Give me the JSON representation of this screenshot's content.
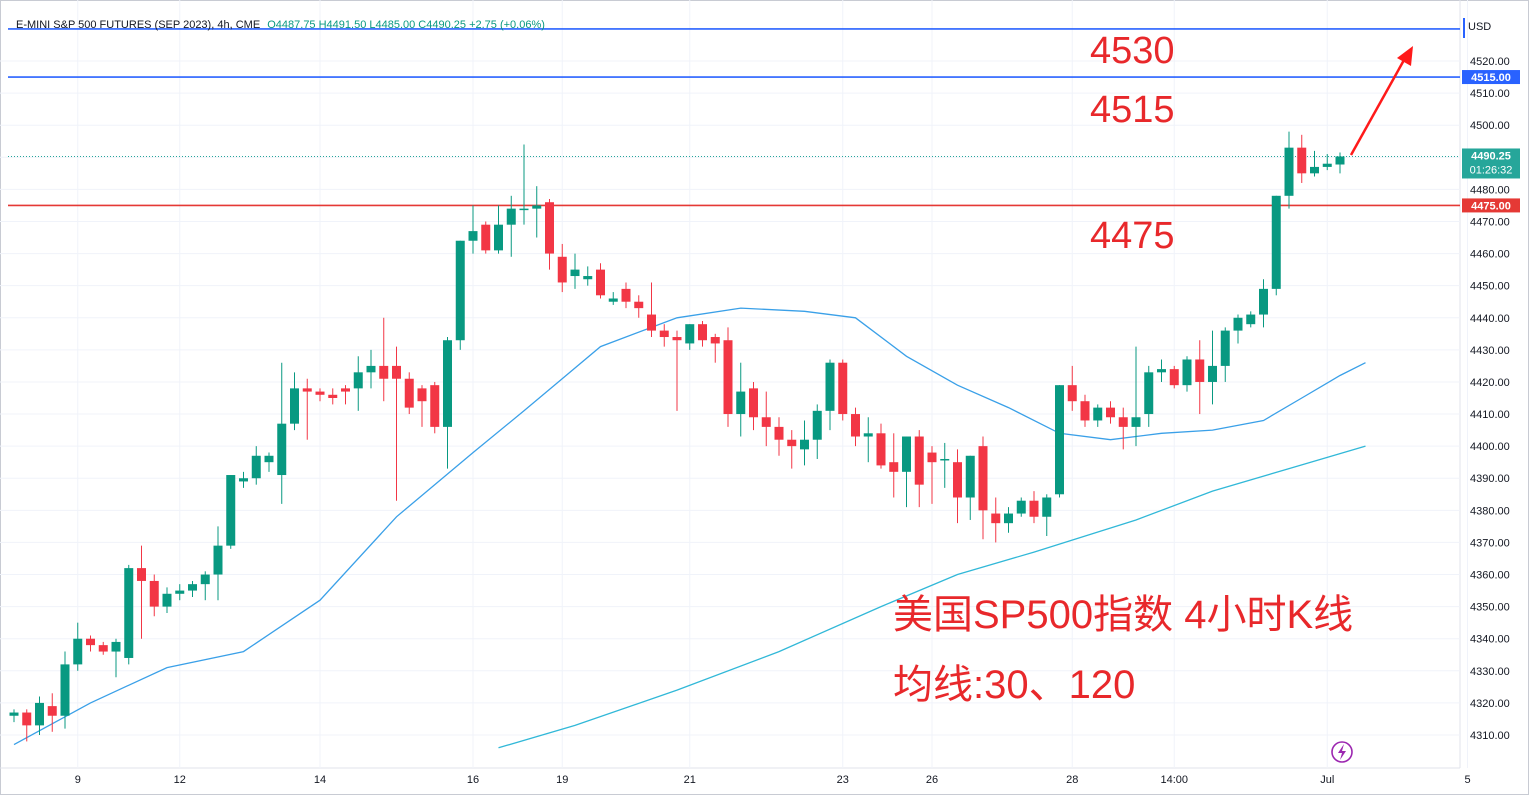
{
  "header": {
    "symbol": "E-MINI S&P 500 FUTURES (SEP 2023)",
    "interval": "4h",
    "exchange": "CME",
    "ohlc": "O4487.75  H4491.50  L4485.00  C4490.25  +2.75 (+0.06%)"
  },
  "currency": "USD",
  "price_labels": {
    "last": "4490.25",
    "countdown": "01:26:32",
    "line_4515": "4515.00",
    "line_4475": "4475.00"
  },
  "annotations": {
    "level_4530": "4530",
    "level_4515": "4515",
    "level_4475": "4475",
    "title_line1": "美国SP500指数 4小时K线",
    "title_line2": "均线:30、120"
  },
  "colors": {
    "up": "#089981",
    "down": "#f23645",
    "blue_line": "#2962ff",
    "red_line": "#e53935",
    "ma30": "#3aa0e8",
    "ma120": "#31b8d8",
    "annotation_text": "#e8282b",
    "last_price": "#26a69a"
  },
  "icons": {
    "replay": "lightning-bolt-icon"
  },
  "chart_data": {
    "type": "candlestick",
    "timeframe": "4h",
    "y_axis": {
      "ticks": [
        4310,
        4320,
        4330,
        4340,
        4350,
        4360,
        4370,
        4380,
        4390,
        4400,
        4410,
        4420,
        4430,
        4440,
        4450,
        4460,
        4470,
        4480,
        4490,
        4500,
        4510,
        4520
      ],
      "tick_labels": [
        "4310.00",
        "4320.00",
        "4330.00",
        "4340.00",
        "4350.00",
        "4360.00",
        "4370.00",
        "4380.00",
        "4390.00",
        "4400.00",
        "4410.00",
        "4420.00",
        "4430.00",
        "4440.00",
        "4450.00",
        "4460.00",
        "4470.00",
        "4480.00",
        "4490.00",
        "4500.00",
        "4510.00",
        "4520.00"
      ]
    },
    "x_axis": {
      "ticks": [
        {
          "label": "9",
          "bar": 5
        },
        {
          "label": "12",
          "bar": 13
        },
        {
          "label": "14",
          "bar": 24
        },
        {
          "label": "16",
          "bar": 36
        },
        {
          "label": "19",
          "bar": 43
        },
        {
          "label": "21",
          "bar": 53
        },
        {
          "label": "23",
          "bar": 65
        },
        {
          "label": "26",
          "bar": 72
        },
        {
          "label": "28",
          "bar": 83
        },
        {
          "label": "14:00",
          "bar": 91
        },
        {
          "label": "Jul",
          "bar": 103
        },
        {
          "label": "5",
          "bar": 114
        }
      ]
    },
    "horizontal_lines": [
      {
        "value": 4530,
        "color": "blue"
      },
      {
        "value": 4515,
        "color": "blue"
      },
      {
        "value": 4475,
        "color": "red"
      }
    ],
    "last_price": 4490.25,
    "candles": [
      [
        4316,
        4318,
        4314,
        4317
      ],
      [
        4317,
        4318,
        4308,
        4313
      ],
      [
        4313,
        4322,
        4310,
        4320
      ],
      [
        4319,
        4323,
        4311,
        4316
      ],
      [
        4316,
        4336,
        4312,
        4332
      ],
      [
        4332,
        4345,
        4330,
        4340
      ],
      [
        4340,
        4341,
        4336,
        4338
      ],
      [
        4338,
        4339,
        4335,
        4336
      ],
      [
        4336,
        4340,
        4328,
        4339
      ],
      [
        4334,
        4363,
        4332,
        4362
      ],
      [
        4362,
        4369,
        4340,
        4358
      ],
      [
        4358,
        4360,
        4347,
        4350
      ],
      [
        4350,
        4356,
        4348,
        4354
      ],
      [
        4354,
        4357,
        4352,
        4355
      ],
      [
        4355,
        4358,
        4353,
        4357
      ],
      [
        4357,
        4361,
        4352,
        4360
      ],
      [
        4360,
        4375,
        4352,
        4369
      ],
      [
        4369,
        4391,
        4368,
        4391
      ],
      [
        4389,
        4392,
        4387,
        4390
      ],
      [
        4390,
        4400,
        4388,
        4397
      ],
      [
        4395,
        4398,
        4392,
        4397
      ],
      [
        4391,
        4426,
        4382,
        4407
      ],
      [
        4407,
        4423,
        4405,
        4418
      ],
      [
        4418,
        4421,
        4402,
        4417
      ],
      [
        4417,
        4418,
        4414,
        4416
      ],
      [
        4416,
        4418,
        4413,
        4415
      ],
      [
        4418,
        4419,
        4413,
        4417
      ],
      [
        4418,
        4428,
        4411,
        4423
      ],
      [
        4423,
        4430,
        4418,
        4425
      ],
      [
        4425,
        4440,
        4414,
        4421
      ],
      [
        4425,
        4431,
        4383,
        4421
      ],
      [
        4421,
        4423,
        4410,
        4412
      ],
      [
        4418,
        4419,
        4406,
        4414
      ],
      [
        4419,
        4420,
        4404,
        4406
      ],
      [
        4406,
        4434,
        4393,
        4433
      ],
      [
        4433,
        4464,
        4430,
        4464
      ],
      [
        4464,
        4475,
        4460,
        4467
      ],
      [
        4469,
        4470,
        4460,
        4461
      ],
      [
        4461,
        4475,
        4460,
        4469
      ],
      [
        4469,
        4478,
        4459,
        4474
      ],
      [
        4474,
        4494,
        4469,
        4474
      ],
      [
        4474,
        4481,
        4465,
        4475
      ],
      [
        4476,
        4477,
        4455,
        4460
      ],
      [
        4459,
        4463,
        4448,
        4451
      ],
      [
        4453,
        4460,
        4449,
        4455
      ],
      [
        4452,
        4456,
        4450,
        4453
      ],
      [
        4455,
        4457,
        4446,
        4447
      ],
      [
        4445,
        4448,
        4444,
        4446
      ],
      [
        4449,
        4451,
        4443,
        4445
      ],
      [
        4445,
        4447,
        4440,
        4443
      ],
      [
        4441,
        4451,
        4434,
        4436
      ],
      [
        4436,
        4438,
        4431,
        4434
      ],
      [
        4434,
        4436,
        4411,
        4433
      ],
      [
        4432,
        4438,
        4430,
        4438
      ],
      [
        4438,
        4439,
        4431,
        4433
      ],
      [
        4434,
        4435,
        4426,
        4432
      ],
      [
        4433,
        4437,
        4406,
        4410
      ],
      [
        4410,
        4426,
        4403,
        4417
      ],
      [
        4418,
        4420,
        4405,
        4409
      ],
      [
        4409,
        4417,
        4400,
        4406
      ],
      [
        4406,
        4409,
        4397,
        4402
      ],
      [
        4402,
        4405,
        4393,
        4400
      ],
      [
        4399,
        4408,
        4394,
        4402
      ],
      [
        4402,
        4413,
        4396,
        4411
      ],
      [
        4411,
        4427,
        4405,
        4426
      ],
      [
        4426,
        4427,
        4408,
        4410
      ],
      [
        4410,
        4412,
        4400,
        4403
      ],
      [
        4403,
        4409,
        4395,
        4404
      ],
      [
        4404,
        4407,
        4393,
        4394
      ],
      [
        4395,
        4404,
        4384,
        4392
      ],
      [
        4392,
        4403,
        4381,
        4403
      ],
      [
        4403,
        4405,
        4381,
        4388
      ],
      [
        4398,
        4400,
        4382,
        4395
      ],
      [
        4396,
        4401,
        4387,
        4396
      ],
      [
        4395,
        4399,
        4376,
        4384
      ],
      [
        4384,
        4397,
        4377,
        4397
      ],
      [
        4400,
        4403,
        4371,
        4380
      ],
      [
        4379,
        4384,
        4370,
        4376
      ],
      [
        4376,
        4381,
        4373,
        4379
      ],
      [
        4379,
        4384,
        4378,
        4383
      ],
      [
        4383,
        4386,
        4376,
        4378
      ],
      [
        4378,
        4385,
        4372,
        4384
      ],
      [
        4385,
        4419,
        4384,
        4419
      ],
      [
        4419,
        4425,
        4411,
        4414
      ],
      [
        4414,
        4416,
        4406,
        4408
      ],
      [
        4408,
        4413,
        4406,
        4412
      ],
      [
        4412,
        4414,
        4407,
        4409
      ],
      [
        4409,
        4412,
        4399,
        4406
      ],
      [
        4406,
        4431,
        4400,
        4409
      ],
      [
        4410,
        4425,
        4406,
        4423
      ],
      [
        4423,
        4427,
        4420,
        4424
      ],
      [
        4424,
        4425,
        4418,
        4419
      ],
      [
        4419,
        4428,
        4417,
        4427
      ],
      [
        4427,
        4433,
        4410,
        4420
      ],
      [
        4420,
        4436,
        4413,
        4425
      ],
      [
        4425,
        4437,
        4420,
        4436
      ],
      [
        4436,
        4441,
        4432,
        4440
      ],
      [
        4438,
        4442,
        4437,
        4441
      ],
      [
        4441,
        4452,
        4437,
        4449
      ],
      [
        4449,
        4478,
        4447,
        4478
      ],
      [
        4478,
        4498,
        4474,
        4493
      ],
      [
        4493,
        4497,
        4482,
        4485
      ],
      [
        4485,
        4492,
        4484,
        4487
      ],
      [
        4487,
        4491,
        4486,
        4488
      ],
      [
        4487.75,
        4491.5,
        4485,
        4490.25
      ]
    ],
    "ma30": [
      [
        0,
        4307
      ],
      [
        6,
        4320
      ],
      [
        12,
        4331
      ],
      [
        18,
        4336
      ],
      [
        24,
        4352
      ],
      [
        30,
        4378
      ],
      [
        36,
        4398
      ],
      [
        40,
        4411
      ],
      [
        46,
        4431
      ],
      [
        52,
        4440
      ],
      [
        57,
        4443
      ],
      [
        62,
        4442
      ],
      [
        66,
        4440
      ],
      [
        70,
        4428
      ],
      [
        74,
        4419
      ],
      [
        78,
        4412
      ],
      [
        82,
        4404
      ],
      [
        86,
        4402
      ],
      [
        90,
        4404
      ],
      [
        94,
        4405
      ],
      [
        98,
        4408
      ],
      [
        101,
        4415
      ],
      [
        104,
        4422
      ],
      [
        106,
        4426
      ]
    ],
    "ma120": [
      [
        38,
        4306
      ],
      [
        44,
        4313
      ],
      [
        52,
        4324
      ],
      [
        60,
        4336
      ],
      [
        68,
        4350
      ],
      [
        74,
        4360
      ],
      [
        80,
        4367
      ],
      [
        88,
        4377
      ],
      [
        94,
        4386
      ],
      [
        100,
        4393
      ],
      [
        106,
        4400
      ]
    ]
  }
}
